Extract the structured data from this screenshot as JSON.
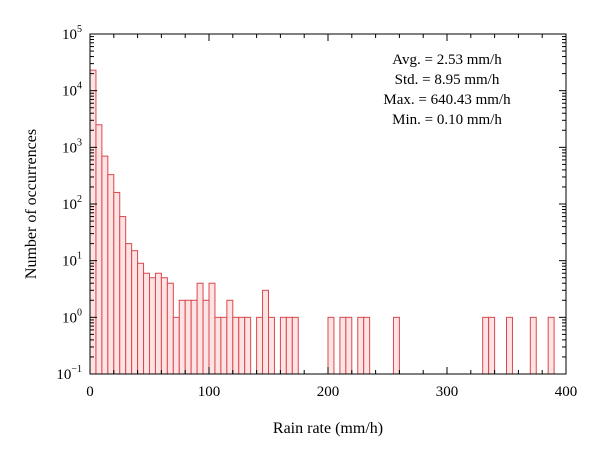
{
  "chart_data": {
    "type": "bar",
    "title": "",
    "xlabel": "Rain rate (mm/h)",
    "ylabel": "Number of occurrences",
    "xlim": [
      0,
      400
    ],
    "ylim": [
      0.1,
      100000
    ],
    "yscale": "log",
    "bin_width": 5,
    "x_ticks": [
      "0",
      "100",
      "200",
      "300",
      "400"
    ],
    "x_tick_values": [
      0,
      100,
      200,
      300,
      400
    ],
    "y_ticks": [
      {
        "value": 0.1,
        "base": "10",
        "exp": "−1"
      },
      {
        "value": 1,
        "base": "10",
        "exp": "0"
      },
      {
        "value": 10,
        "base": "10",
        "exp": "1"
      },
      {
        "value": 100,
        "base": "10",
        "exp": "2"
      },
      {
        "value": 1000,
        "base": "10",
        "exp": "3"
      },
      {
        "value": 10000,
        "base": "10",
        "exp": "4"
      },
      {
        "value": 100000,
        "base": "10",
        "exp": "5"
      }
    ],
    "bars": [
      {
        "x": 0,
        "y": 23000
      },
      {
        "x": 5,
        "y": 2500
      },
      {
        "x": 10,
        "y": 700
      },
      {
        "x": 15,
        "y": 330
      },
      {
        "x": 20,
        "y": 160
      },
      {
        "x": 25,
        "y": 60
      },
      {
        "x": 30,
        "y": 20
      },
      {
        "x": 35,
        "y": 15
      },
      {
        "x": 40,
        "y": 9
      },
      {
        "x": 45,
        "y": 6
      },
      {
        "x": 50,
        "y": 5
      },
      {
        "x": 55,
        "y": 6
      },
      {
        "x": 60,
        "y": 5
      },
      {
        "x": 65,
        "y": 4
      },
      {
        "x": 70,
        "y": 1
      },
      {
        "x": 75,
        "y": 2
      },
      {
        "x": 80,
        "y": 2
      },
      {
        "x": 85,
        "y": 2
      },
      {
        "x": 90,
        "y": 4
      },
      {
        "x": 95,
        "y": 2
      },
      {
        "x": 100,
        "y": 4
      },
      {
        "x": 105,
        "y": 1
      },
      {
        "x": 110,
        "y": 1
      },
      {
        "x": 115,
        "y": 2
      },
      {
        "x": 120,
        "y": 1
      },
      {
        "x": 125,
        "y": 1
      },
      {
        "x": 130,
        "y": 1
      },
      {
        "x": 140,
        "y": 1
      },
      {
        "x": 145,
        "y": 3
      },
      {
        "x": 150,
        "y": 1
      },
      {
        "x": 160,
        "y": 1
      },
      {
        "x": 165,
        "y": 1
      },
      {
        "x": 170,
        "y": 1
      },
      {
        "x": 200,
        "y": 1
      },
      {
        "x": 210,
        "y": 1
      },
      {
        "x": 215,
        "y": 1
      },
      {
        "x": 225,
        "y": 1
      },
      {
        "x": 230,
        "y": 1
      },
      {
        "x": 255,
        "y": 1
      },
      {
        "x": 330,
        "y": 1
      },
      {
        "x": 335,
        "y": 1
      },
      {
        "x": 350,
        "y": 1
      },
      {
        "x": 370,
        "y": 1
      },
      {
        "x": 385,
        "y": 1
      }
    ],
    "annotations": [
      "Avg. = 2.53 mm/h",
      "Std. = 8.95 mm/h",
      "Max. = 640.43 mm/h",
      "Min. = 0.10 mm/h"
    ],
    "colors": {
      "bar_fill": "#fde3e3",
      "bar_stroke": "#d9484e",
      "axis": "#000000"
    },
    "grid": false,
    "legend": "none"
  }
}
